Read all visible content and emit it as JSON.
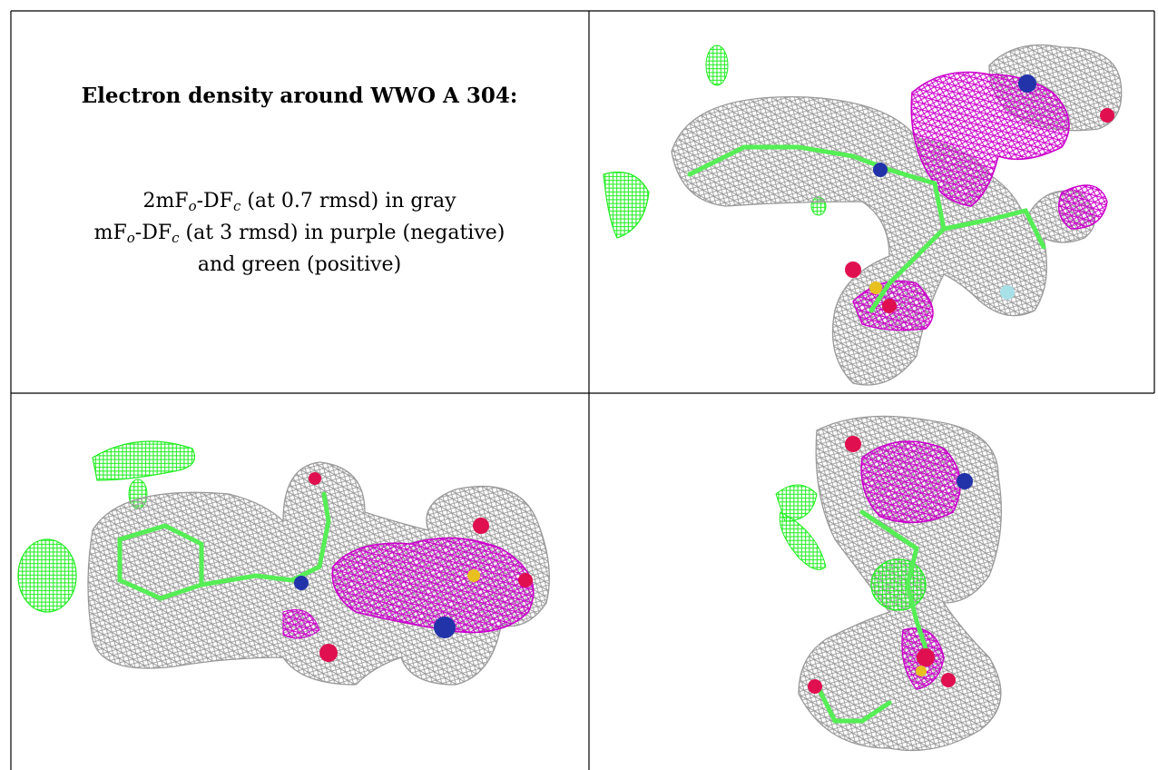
{
  "title": "Electron density around WWO A 304:",
  "legend": {
    "line1": {
      "a": "2mF",
      "b": "o",
      "c": "-DF",
      "d": "c",
      "e": " (at 0.7 rmsd) in gray"
    },
    "line2": {
      "a": "mF",
      "b": "o",
      "c": "-DF",
      "d": "c",
      "e": " (at 3 rmsd) in purple (negative)"
    },
    "line3": "and green (positive)"
  },
  "colors": {
    "mesh_2fofc": "#9a9a9a",
    "mesh_negative": "#cc00cc",
    "mesh_positive": "#22ee22",
    "carbon": "#55ee55",
    "nitrogen": "#2233aa",
    "oxygen": "#e01050",
    "sulfur": "#e8c020",
    "fluorine": "#a8e0e8",
    "border": "#000000"
  },
  "panels": [
    "density-view-1",
    "density-view-2",
    "density-view-3"
  ]
}
